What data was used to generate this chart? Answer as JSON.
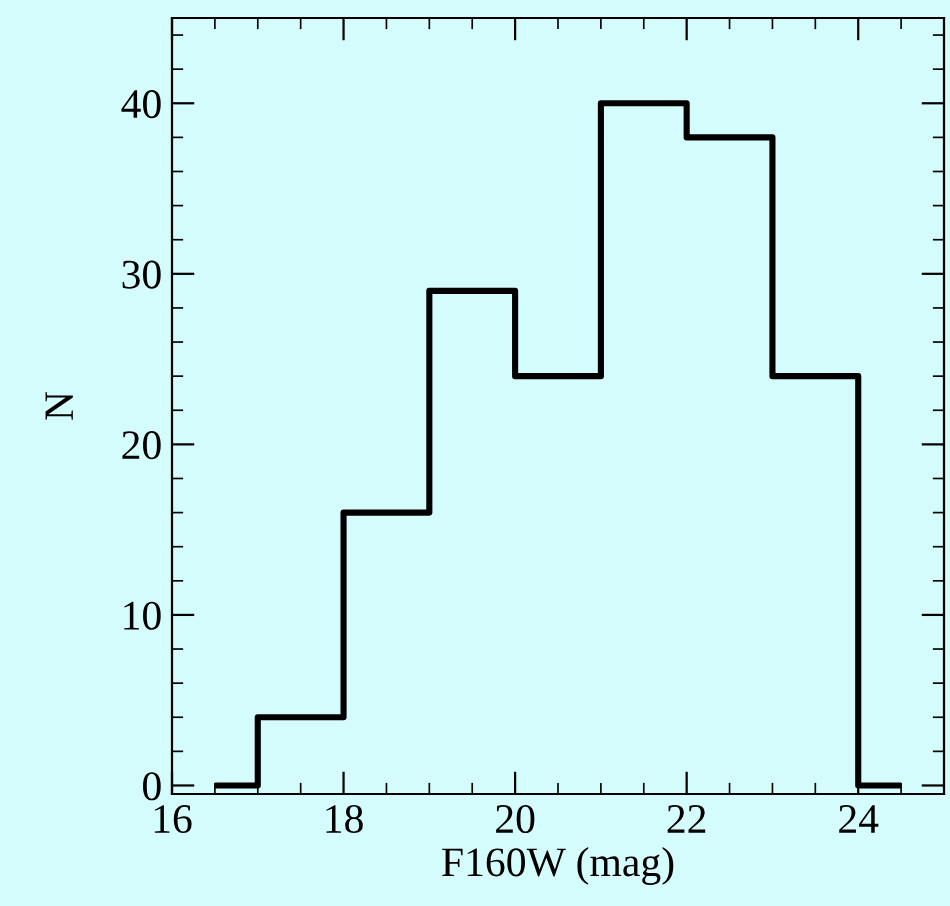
{
  "chart_data": {
    "type": "histogram",
    "xlabel": "F160W (mag)",
    "ylabel": "N",
    "bins": [
      16.5,
      17,
      18,
      19,
      20,
      21,
      22,
      23,
      24,
      24.5
    ],
    "values": [
      0,
      4,
      16,
      29,
      24,
      40,
      38,
      24,
      0
    ],
    "color": "#000000",
    "xlim": [
      16,
      25
    ],
    "xticks": [
      16,
      18,
      20,
      22,
      24
    ],
    "ylim": [
      -0.5,
      45
    ],
    "yticks": [
      0,
      10,
      20,
      30,
      40
    ],
    "grid": false,
    "legend": false
  }
}
